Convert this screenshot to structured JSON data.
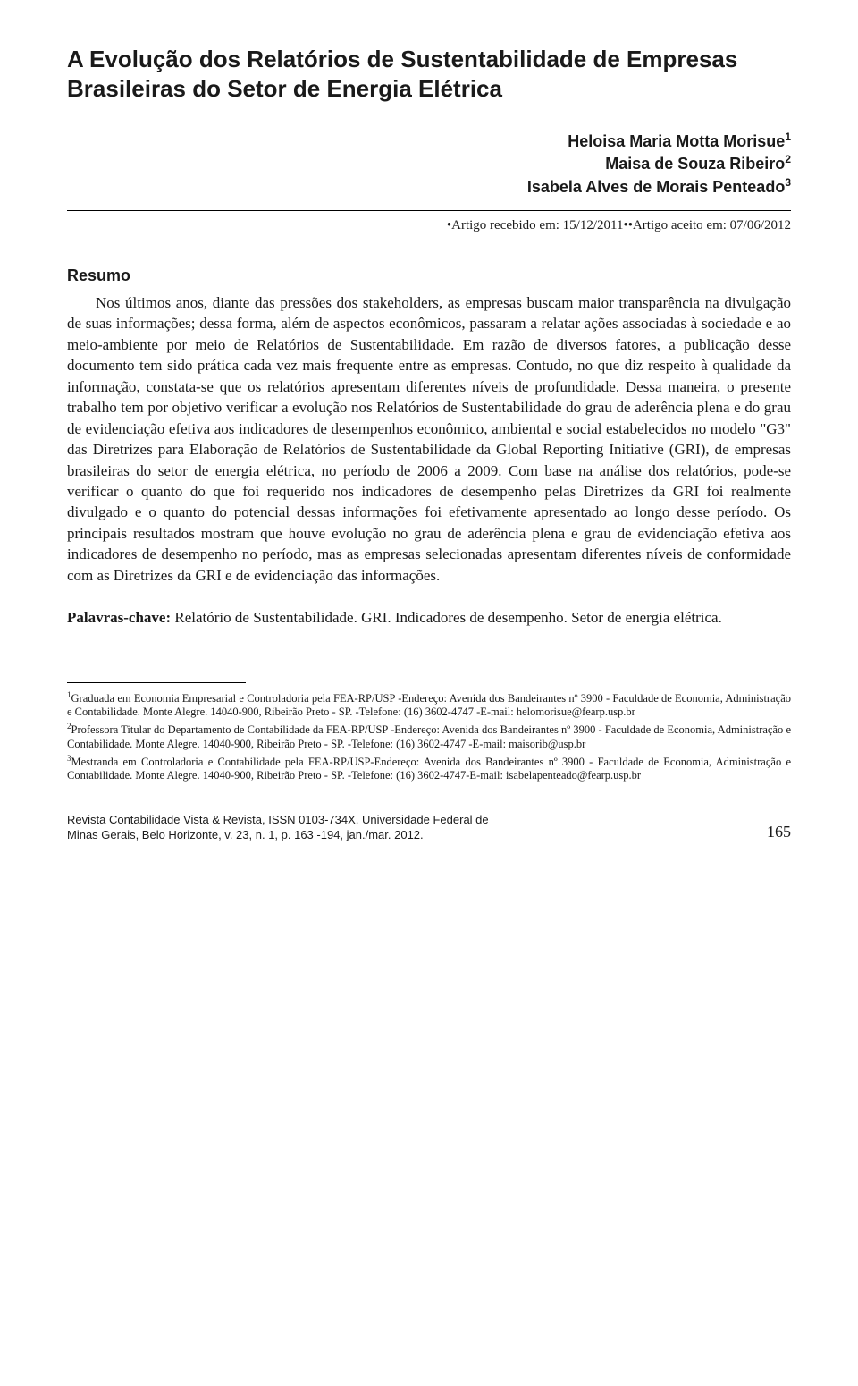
{
  "title": "A Evolução dos Relatórios de Sustentabilidade de Empresas Brasileiras do Setor de Energia Elétrica",
  "authors": [
    {
      "name": "Heloisa Maria Motta Morisue",
      "sup": "1"
    },
    {
      "name": "Maisa de Souza Ribeiro",
      "sup": "2"
    },
    {
      "name": "Isabela Alves de Morais Penteado",
      "sup": "3"
    }
  ],
  "received": "•Artigo recebido em: 15/12/2011••Artigo aceito em: 07/06/2012",
  "resumo_heading": "Resumo",
  "abstract": "Nos últimos anos, diante das pressões dos stakeholders, as empresas buscam maior transparência na divulgação de suas informações; dessa forma, além de aspectos econômicos, passaram a relatar ações associadas à sociedade e ao meio-ambiente por meio de Relatórios de Sustentabilidade. Em razão de diversos fatores, a publicação desse documento tem sido prática cada vez mais frequente entre as empresas. Contudo, no que diz respeito à qualidade da informação, constata-se que os relatórios apresentam diferentes níveis de profundidade. Dessa maneira, o presente trabalho tem por objetivo verificar a evolução nos Relatórios de Sustentabilidade do grau de aderência plena e do grau de evidenciação efetiva aos indicadores de desempenhos econômico, ambiental e social estabelecidos no modelo \"G3\" das Diretrizes para Elaboração de Relatórios de Sustentabilidade da Global Reporting Initiative (GRI), de empresas brasileiras do setor de energia elétrica, no período de 2006 a 2009. Com base na análise dos relatórios, pode-se verificar o quanto do que foi requerido nos indicadores de desempenho pelas Diretrizes da GRI foi realmente divulgado e o quanto do potencial dessas informações foi efetivamente apresentado ao longo desse período. Os principais resultados mostram que houve evolução no grau de aderência plena e grau de evidenciação efetiva aos indicadores de desempenho no período, mas as empresas selecionadas apresentam diferentes níveis de conformidade com as Diretrizes da GRI e de evidenciação das informações.",
  "keywords_label": "Palavras-chave:",
  "keywords_text": " Relatório de Sustentabilidade. GRI. Indicadores de desempenho. Setor de energia elétrica.",
  "footnotes": [
    {
      "sup": "1",
      "text": "Graduada em Economia Empresarial e Controladoria pela FEA-RP/USP -Endereço: Avenida dos Bandeirantes nº 3900 - Faculdade de Economia, Administração e Contabilidade. Monte Alegre. 14040-900, Ribeirão Preto - SP.  -Telefone: (16) 3602-4747 -E-mail: helomorisue@fearp.usp.br"
    },
    {
      "sup": "2",
      "text": "Professora Titular do Departamento de Contabilidade da FEA-RP/USP -Endereço: Avenida dos Bandeirantes nº 3900 - Faculdade de Economia, Administração e Contabilidade. Monte Alegre. 14040-900, Ribeirão Preto - SP.  -Telefone: (16) 3602-4747 -E-mail: maisorib@usp.br"
    },
    {
      "sup": "3",
      "text": "Mestranda em Controladoria e Contabilidade pela FEA-RP/USP-Endereço: Avenida dos Bandeirantes nº 3900 - Faculdade de Economia, Administração e Contabilidade. Monte Alegre. 14040-900, Ribeirão Preto - SP.  -Telefone: (16) 3602-4747-E-mail: isabelapenteado@fearp.usp.br"
    }
  ],
  "footer": {
    "journal_line1": "Revista Contabilidade Vista & Revista, ISSN 0103-734X, Universidade Federal de",
    "journal_line2": "Minas Gerais, Belo Horizonte, v. 23, n. 1, p. 163 -194, jan./mar. 2012.",
    "page": "165"
  }
}
